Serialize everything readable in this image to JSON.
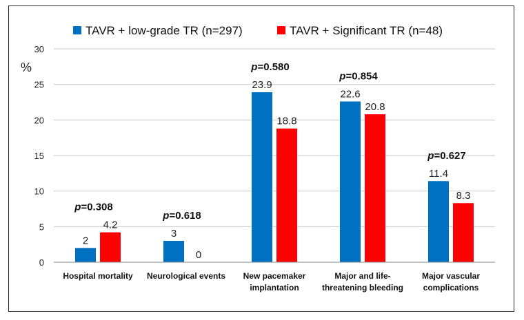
{
  "chart_data": {
    "type": "bar",
    "title": "",
    "ylabel": "%",
    "xlabel": "",
    "ylim": [
      0,
      30
    ],
    "yticks": [
      0,
      5,
      10,
      15,
      20,
      25,
      30
    ],
    "grid": true,
    "legend_position": "top",
    "categories": [
      [
        "Hospital mortality"
      ],
      [
        "Neurological events"
      ],
      [
        "New pacemaker",
        "implantation"
      ],
      [
        "Major and life-",
        "threatening bleeding"
      ],
      [
        "Major vascular",
        "complications"
      ]
    ],
    "series": [
      {
        "name": "TAVR + low-grade TR (n=297)",
        "color": "#0070C0",
        "values": [
          2,
          3,
          23.9,
          22.6,
          11.4
        ],
        "labels": [
          "2",
          "3",
          "23.9",
          "22.6",
          "11.4"
        ]
      },
      {
        "name": "TAVR + Significant TR (n=48)",
        "color": "#FF0000",
        "values": [
          4.2,
          0,
          18.8,
          20.8,
          8.3
        ],
        "labels": [
          "4.2",
          "0",
          "18.8",
          "20.8",
          "8.3"
        ]
      }
    ],
    "annotations": [
      {
        "prefix": "p",
        "text": "=0.308"
      },
      {
        "prefix": "p",
        "text": "=0.618"
      },
      {
        "prefix": "p",
        "text": "=0.580"
      },
      {
        "prefix": "p",
        "text": "=0.854"
      },
      {
        "prefix": "p",
        "text": "=0.627"
      }
    ]
  }
}
